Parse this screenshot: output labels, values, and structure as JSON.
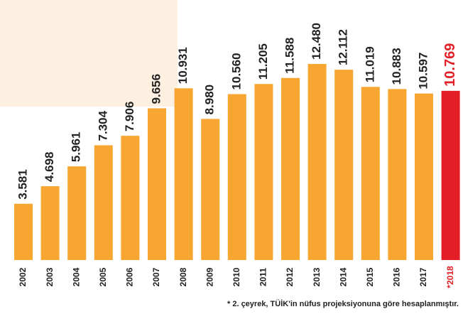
{
  "chart_data": {
    "type": "bar",
    "categories": [
      "2002",
      "2003",
      "2004",
      "2005",
      "2006",
      "2007",
      "2008",
      "2009",
      "2010",
      "2011",
      "2012",
      "2013",
      "2014",
      "2015",
      "2016",
      "2017",
      "*2018"
    ],
    "values": [
      3581,
      4698,
      5961,
      7304,
      7906,
      9656,
      10931,
      8980,
      10560,
      11205,
      11588,
      12480,
      12112,
      11019,
      10883,
      10597,
      10769
    ],
    "value_labels": [
      "3.581",
      "4.698",
      "5.961",
      "7.304",
      "7.906",
      "9.656",
      "10.931",
      "8.980",
      "10.560",
      "11.205",
      "11.588",
      "12.480",
      "12.112",
      "11.019",
      "10.883",
      "10.597",
      "10.769"
    ],
    "colors": [
      "#f7a631",
      "#f7a631",
      "#f7a631",
      "#f7a631",
      "#f7a631",
      "#f7a631",
      "#f7a631",
      "#f7a631",
      "#f7a631",
      "#f7a631",
      "#f7a631",
      "#f7a631",
      "#f7a631",
      "#f7a631",
      "#f7a631",
      "#f7a631",
      "#e31e26"
    ],
    "footnote": "* 2. çeyrek, TÜİK'in nüfus projeksiyonuna göre hesaplanmıştır."
  }
}
